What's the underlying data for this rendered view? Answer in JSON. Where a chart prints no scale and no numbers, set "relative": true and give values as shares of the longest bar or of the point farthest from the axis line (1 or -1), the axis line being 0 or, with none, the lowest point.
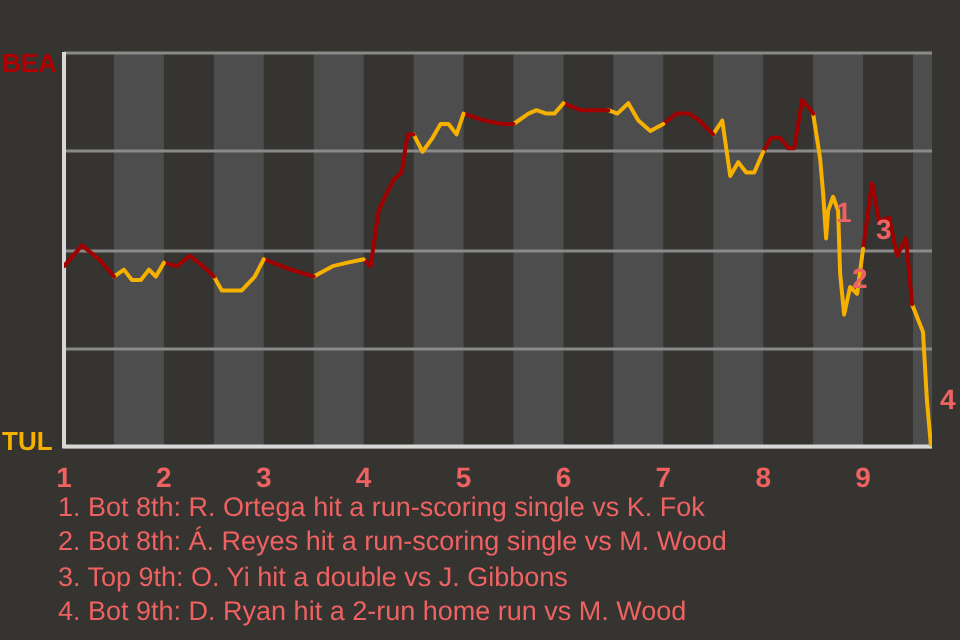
{
  "chart_data": {
    "type": "line",
    "relative": true,
    "series": [
      {
        "color": "#a00000",
        "x": [
          1,
          1.18,
          1.35,
          1.5
        ],
        "values": [
          0.52,
          0.58,
          0.54,
          0.49
        ]
      },
      {
        "color": "#f5b000",
        "x": [
          1.5,
          1.6,
          1.68,
          1.77,
          1.85,
          1.92,
          2
        ],
        "values": [
          0.49,
          0.51,
          0.48,
          0.48,
          0.51,
          0.49,
          0.53
        ]
      },
      {
        "color": "#a00000",
        "x": [
          2,
          2.13,
          2.26,
          2.39,
          2.5
        ],
        "values": [
          0.53,
          0.52,
          0.55,
          0.52,
          0.49
        ]
      },
      {
        "color": "#f5b000",
        "x": [
          2.5,
          2.58,
          2.78,
          2.91,
          3
        ],
        "values": [
          0.49,
          0.45,
          0.45,
          0.49,
          0.54
        ]
      },
      {
        "color": "#a00000",
        "x": [
          3,
          3.27,
          3.5
        ],
        "values": [
          0.54,
          0.51,
          0.49
        ]
      },
      {
        "color": "#f5b000",
        "x": [
          3.5,
          3.69,
          3.84,
          4
        ],
        "values": [
          0.49,
          0.52,
          0.53,
          0.54
        ]
      },
      {
        "color": "#a00000",
        "x": [
          4,
          4.07,
          4.15,
          4.23,
          4.3,
          4.38,
          4.44,
          4.5
        ],
        "values": [
          0.54,
          0.52,
          0.68,
          0.73,
          0.77,
          0.79,
          0.9,
          0.9
        ]
      },
      {
        "color": "#f5b000",
        "x": [
          4.5,
          4.59,
          4.69,
          4.77,
          4.85,
          4.93,
          5
        ],
        "values": [
          0.9,
          0.85,
          0.89,
          0.93,
          0.93,
          0.9,
          0.96
        ]
      },
      {
        "color": "#a00000",
        "x": [
          5,
          5.21,
          5.38,
          5.5
        ],
        "values": [
          0.96,
          0.94,
          0.93,
          0.93
        ]
      },
      {
        "color": "#f5b000",
        "x": [
          5.5,
          5.65,
          5.73,
          5.83,
          5.91,
          6
        ],
        "values": [
          0.93,
          0.96,
          0.97,
          0.96,
          0.96,
          0.99
        ]
      },
      {
        "color": "#a00000",
        "x": [
          6,
          6.17,
          6.33,
          6.45
        ],
        "values": [
          0.99,
          0.97,
          0.97,
          0.97
        ]
      },
      {
        "color": "#f5b000",
        "x": [
          6.45,
          6.54,
          6.65,
          6.75,
          6.87,
          7
        ],
        "values": [
          0.97,
          0.96,
          0.99,
          0.94,
          0.91,
          0.93
        ]
      },
      {
        "color": "#a00000",
        "x": [
          7,
          7.13,
          7.26,
          7.36,
          7.5
        ],
        "values": [
          0.93,
          0.96,
          0.96,
          0.94,
          0.9
        ]
      },
      {
        "color": "#f5b000",
        "x": [
          7.5,
          7.59,
          7.67,
          7.75,
          7.83,
          7.91,
          8
        ],
        "values": [
          0.9,
          0.94,
          0.78,
          0.82,
          0.79,
          0.79,
          0.85
        ]
      },
      {
        "color": "#a00000",
        "x": [
          8,
          8.08,
          8.17,
          8.25,
          8.31,
          8.39,
          8.5
        ],
        "values": [
          0.85,
          0.89,
          0.89,
          0.86,
          0.86,
          1,
          0.96
        ]
      },
      {
        "color": "#f5b000",
        "x": [
          8.5,
          8.57,
          8.6,
          8.63,
          8.65,
          8.7,
          8.75,
          8.77,
          8.81,
          8.87,
          8.94,
          9
        ],
        "values": [
          0.96,
          0.83,
          0.73,
          0.6,
          0.68,
          0.72,
          0.68,
          0.5,
          0.38,
          0.46,
          0.44,
          0.57
        ]
      },
      {
        "color": "#a00000",
        "x": [
          9,
          9.09,
          9.16,
          9.26,
          9.34,
          9.43,
          9.49
        ],
        "values": [
          0.57,
          0.76,
          0.65,
          0.66,
          0.55,
          0.6,
          0.41
        ]
      },
      {
        "color": "#f5b000",
        "x": [
          9.49,
          9.6,
          9.64,
          9.68
        ],
        "values": [
          0.41,
          0.33,
          0.13,
          0
        ]
      }
    ],
    "xlim": [
      1,
      9.69
    ],
    "xticks": [
      1,
      2,
      3,
      4,
      5,
      6,
      7,
      8,
      9
    ],
    "grid": "y",
    "legend": false,
    "marker": "none",
    "bands": [
      {
        "axis": "x",
        "from": 1.5,
        "to": 2,
        "color": "#4d4d4d"
      },
      {
        "axis": "x",
        "from": 2.5,
        "to": 3,
        "color": "#4d4d4d"
      },
      {
        "axis": "x",
        "from": 3.5,
        "to": 4,
        "color": "#4d4d4d"
      },
      {
        "axis": "x",
        "from": 4.5,
        "to": 5,
        "color": "#4d4d4d"
      },
      {
        "axis": "x",
        "from": 5.5,
        "to": 6,
        "color": "#4d4d4d"
      },
      {
        "axis": "x",
        "from": 6.5,
        "to": 7,
        "color": "#4d4d4d"
      },
      {
        "axis": "x",
        "from": 7.5,
        "to": 8,
        "color": "#4d4d4d"
      },
      {
        "axis": "x",
        "from": 8.5,
        "to": 9,
        "color": "#4d4d4d"
      },
      {
        "axis": "x",
        "from": 9.5,
        "to": 9.69,
        "color": "#4d4d4d"
      }
    ],
    "annotations": [
      "BEA",
      "TUL",
      {
        "text": "1",
        "x": 8.63,
        "y": 0.67
      },
      {
        "text": "2",
        "x": 8.79,
        "y": 0.48
      },
      {
        "text": "3",
        "x": 9.03,
        "y": 0.62
      },
      {
        "text": "4",
        "x": 9.67,
        "y": 0.13
      },
      "1. Bot 8th: R. Ortega hit a run-scoring single vs K. Fok",
      "2. Bot 8th: Á. Reyes hit a run-scoring single vs M. Wood",
      "3. Top 9th: O. Yi hit a double vs J. Gibbons",
      "4. Bot 9th: D. Ryan hit a 2-run home run vs M. Wood"
    ]
  }
}
